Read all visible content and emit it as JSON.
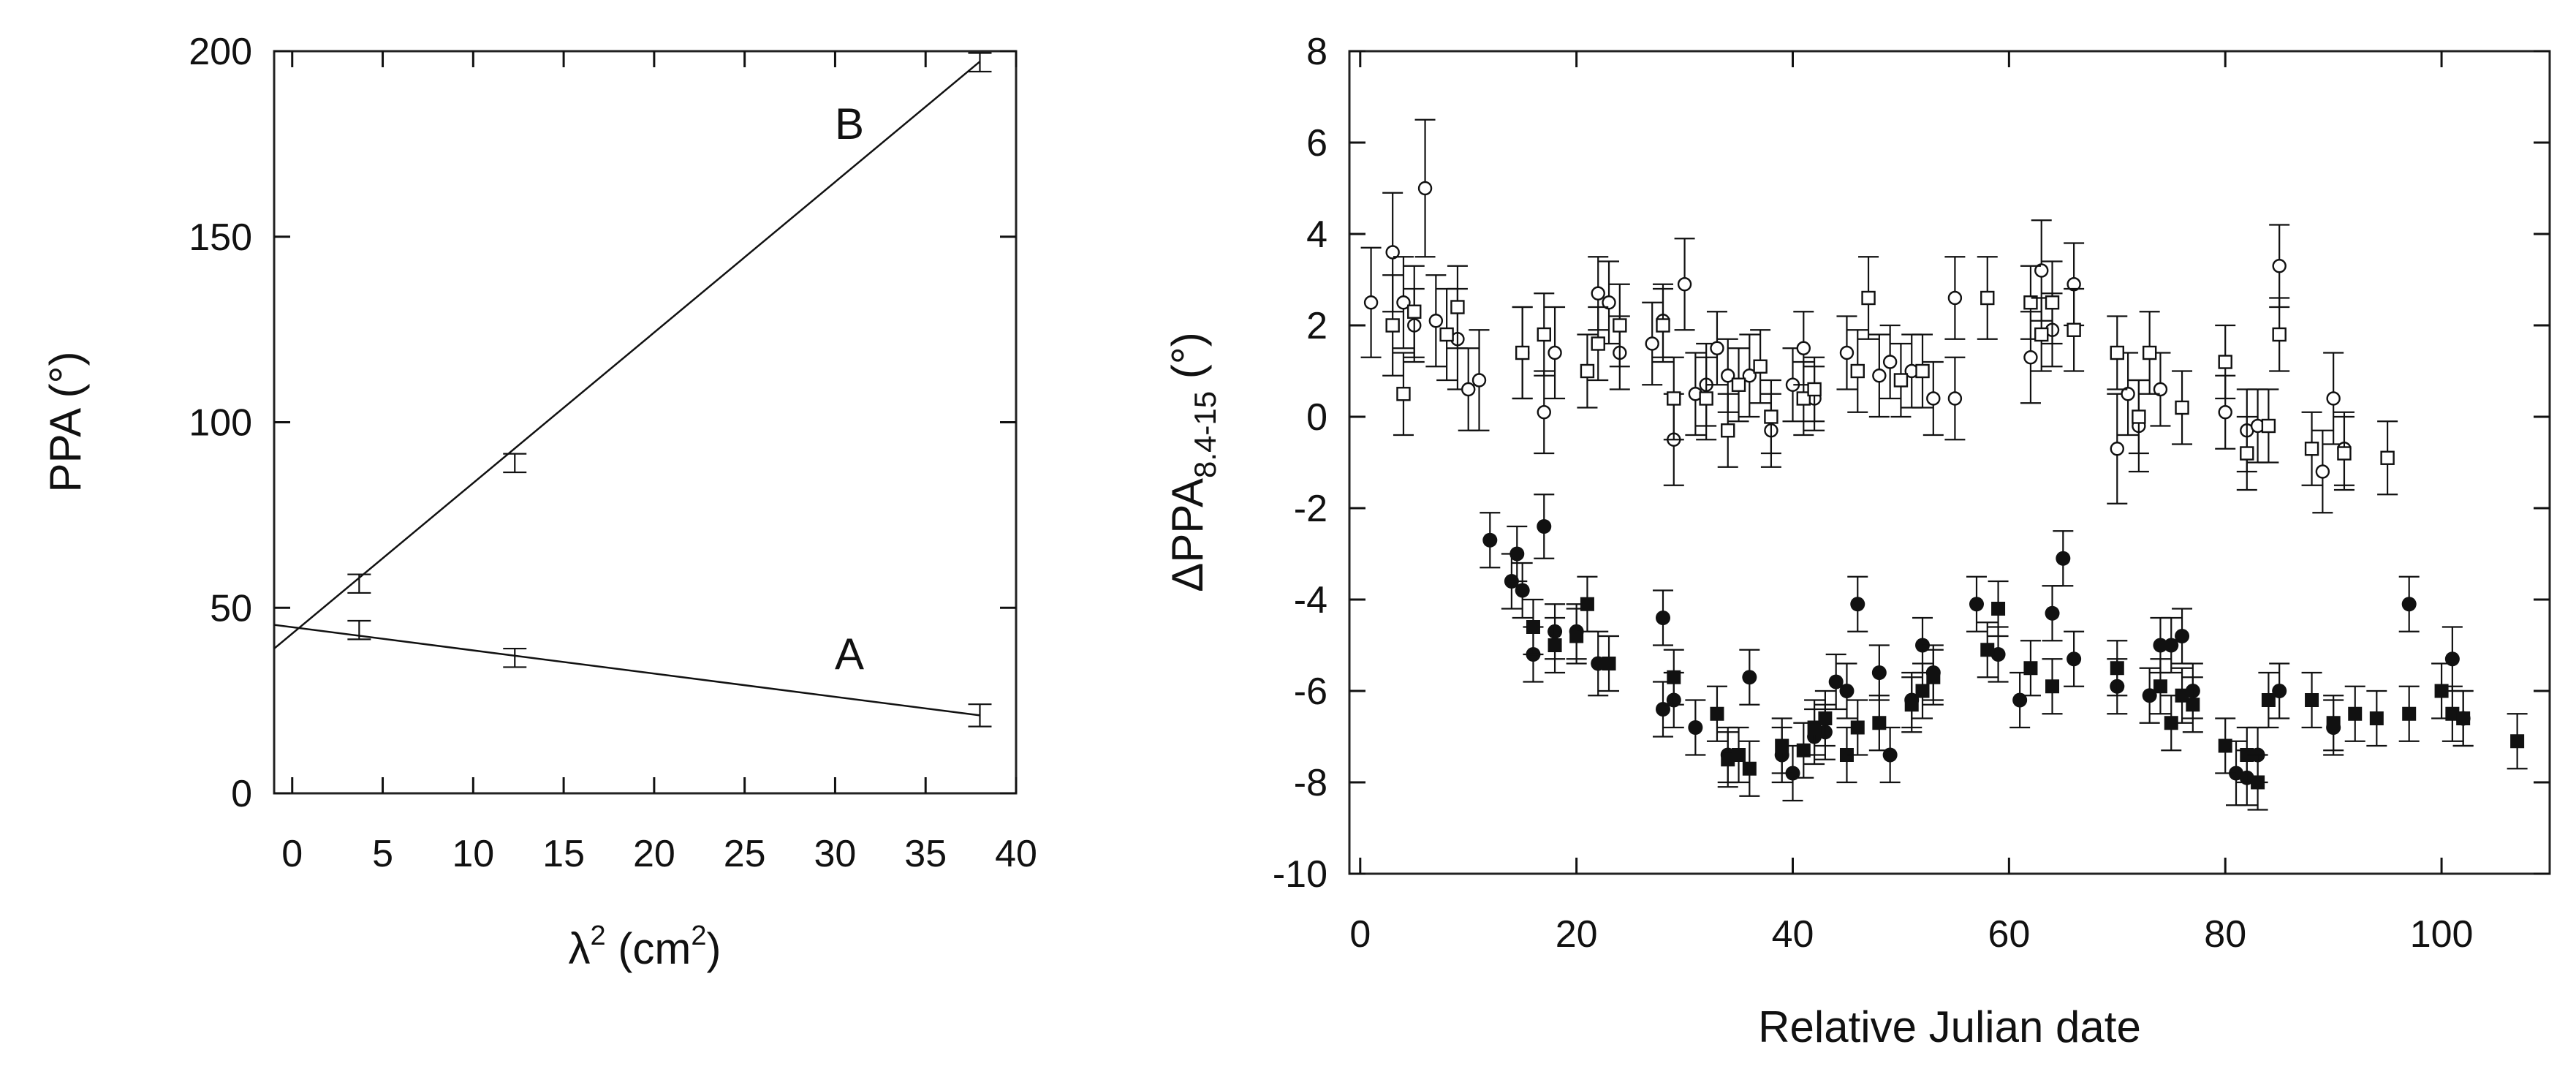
{
  "chart_data": [
    {
      "type": "scatter",
      "xlabel": {
        "text": "λ",
        "sup": "2",
        "suffix": " (cm",
        "sup2": "2",
        "end": ")"
      },
      "ylabel": "PPA (°)",
      "xlim": [
        -1,
        40
      ],
      "ylim": [
        0,
        200
      ],
      "xticks": [
        "0",
        "5",
        "10",
        "15",
        "20",
        "25",
        "30",
        "35",
        "40"
      ],
      "yticks": [
        "0",
        "50",
        "100",
        "150",
        "200"
      ],
      "series": [
        {
          "name": "A",
          "label": "A",
          "points": [
            {
              "x": 3.7,
              "y": 44,
              "err": 2.5
            },
            {
              "x": 12.3,
              "y": 36.5,
              "err": 2.5
            },
            {
              "x": 38,
              "y": 21,
              "err": 3
            }
          ],
          "fit": {
            "x0": -1,
            "y0": 45.4,
            "x1": 38,
            "y1": 21
          }
        },
        {
          "name": "B",
          "label": "B",
          "points": [
            {
              "x": 3.7,
              "y": 56.5,
              "err": 2.5
            },
            {
              "x": 12.3,
              "y": 89,
              "err": 2.5
            },
            {
              "x": 38,
              "y": 197,
              "err": 2.5
            }
          ],
          "fit": {
            "x0": -1,
            "y0": 39,
            "x1": 38,
            "y1": 197.2
          }
        }
      ]
    },
    {
      "type": "scatter",
      "xlabel": "Relative Julian date",
      "ylabel": {
        "text": "ΔPPA",
        "sub": "8.4-15",
        "suffix": "  (°)"
      },
      "xlim": [
        -1,
        110
      ],
      "ylim": [
        -10,
        8
      ],
      "xticks": [
        "0",
        "20",
        "40",
        "60",
        "80",
        "100"
      ],
      "yticks": [
        "-10",
        "-8",
        "-6",
        "-4",
        "-2",
        "0",
        "2",
        "4",
        "6",
        "8"
      ],
      "series": [
        {
          "name": "open circles",
          "marker": "open-circle",
          "points": [
            [
              1,
              2.5,
              1.2
            ],
            [
              3,
              3.6,
              1.3
            ],
            [
              4,
              2.5,
              1.0
            ],
            [
              5,
              2.0,
              0.8
            ],
            [
              6,
              5.0,
              1.5
            ],
            [
              7,
              2.1,
              1.0
            ],
            [
              9,
              1.7,
              1.1
            ],
            [
              10,
              0.6,
              0.9
            ],
            [
              11,
              0.8,
              1.1
            ],
            [
              15,
              1.4,
              1.0
            ],
            [
              17,
              0.1,
              0.9
            ],
            [
              18,
              1.4,
              1.0
            ],
            [
              22,
              2.7,
              0.8
            ],
            [
              23,
              2.5,
              0.9
            ],
            [
              24,
              1.4,
              0.8
            ],
            [
              27,
              1.6,
              0.9
            ],
            [
              28,
              2.1,
              0.8
            ],
            [
              29,
              -0.5,
              1.0
            ],
            [
              30,
              2.9,
              1.0
            ],
            [
              31,
              0.5,
              0.9
            ],
            [
              32,
              0.7,
              0.9
            ],
            [
              33,
              1.5,
              0.8
            ],
            [
              34,
              0.9,
              0.8
            ],
            [
              36,
              0.9,
              0.9
            ],
            [
              38,
              -0.3,
              0.8
            ],
            [
              40,
              0.7,
              0.8
            ],
            [
              41,
              1.5,
              0.8
            ],
            [
              42,
              0.4,
              0.7
            ],
            [
              45,
              1.4,
              0.8
            ],
            [
              48,
              0.9,
              0.9
            ],
            [
              49,
              1.2,
              0.8
            ],
            [
              51,
              1.0,
              0.8
            ],
            [
              53,
              0.4,
              0.8
            ],
            [
              55,
              0.4,
              0.9
            ],
            [
              55,
              2.6,
              0.9
            ],
            [
              62,
              1.3,
              1.0
            ],
            [
              63,
              3.2,
              1.1
            ],
            [
              64,
              1.9,
              0.8
            ],
            [
              66,
              2.9,
              0.9
            ],
            [
              70,
              -0.7,
              1.2
            ],
            [
              71,
              0.5,
              0.9
            ],
            [
              72,
              -0.2,
              1.0
            ],
            [
              74,
              0.6,
              0.8
            ],
            [
              80,
              0.1,
              0.8
            ],
            [
              82,
              -0.3,
              0.9
            ],
            [
              83,
              -0.2,
              0.8
            ],
            [
              85,
              3.3,
              0.9
            ],
            [
              89,
              -1.2,
              0.9
            ],
            [
              90,
              0.4,
              1.0
            ],
            [
              91,
              -0.7,
              0.8
            ]
          ]
        },
        {
          "name": "open squares",
          "marker": "open-square",
          "points": [
            [
              3,
              2.0,
              1.1
            ],
            [
              4,
              0.5,
              0.9
            ],
            [
              5,
              2.3,
              1.0
            ],
            [
              8,
              1.8,
              1.0
            ],
            [
              9,
              2.4,
              0.9
            ],
            [
              15,
              1.4,
              1.0
            ],
            [
              17,
              1.8,
              0.9
            ],
            [
              21,
              1.0,
              0.8
            ],
            [
              22,
              1.6,
              0.8
            ],
            [
              24,
              2.0,
              0.9
            ],
            [
              28,
              2.0,
              0.8
            ],
            [
              29,
              0.4,
              0.9
            ],
            [
              32,
              0.4,
              0.9
            ],
            [
              34,
              -0.3,
              0.8
            ],
            [
              35,
              0.7,
              0.8
            ],
            [
              37,
              1.1,
              0.8
            ],
            [
              38,
              0.0,
              0.8
            ],
            [
              41,
              0.4,
              0.8
            ],
            [
              42,
              0.6,
              0.7
            ],
            [
              46,
              1.0,
              0.9
            ],
            [
              47,
              2.6,
              0.9
            ],
            [
              50,
              0.8,
              0.8
            ],
            [
              52,
              1.0,
              0.8
            ],
            [
              58,
              2.6,
              0.9
            ],
            [
              62,
              2.5,
              0.8
            ],
            [
              63,
              1.8,
              0.8
            ],
            [
              64,
              2.5,
              0.9
            ],
            [
              66,
              1.9,
              0.9
            ],
            [
              70,
              1.4,
              0.8
            ],
            [
              72,
              0.0,
              0.8
            ],
            [
              73,
              1.4,
              0.9
            ],
            [
              76,
              0.2,
              0.8
            ],
            [
              80,
              1.2,
              0.8
            ],
            [
              82,
              -0.8,
              0.8
            ],
            [
              84,
              -0.2,
              0.8
            ],
            [
              85,
              1.8,
              0.8
            ],
            [
              88,
              -0.7,
              0.8
            ],
            [
              91,
              -0.8,
              0.8
            ],
            [
              95,
              -0.9,
              0.8
            ]
          ]
        },
        {
          "name": "filled circles",
          "marker": "filled-circle",
          "points": [
            [
              12,
              -2.7,
              0.6
            ],
            [
              14,
              -3.6,
              0.6
            ],
            [
              14.5,
              -3.0,
              0.6
            ],
            [
              15,
              -3.8,
              0.6
            ],
            [
              16,
              -5.2,
              0.6
            ],
            [
              17,
              -2.4,
              0.7
            ],
            [
              18,
              -4.7,
              0.6
            ],
            [
              20,
              -4.7,
              0.6
            ],
            [
              22,
              -5.4,
              0.7
            ],
            [
              28,
              -4.4,
              0.6
            ],
            [
              28,
              -6.4,
              0.6
            ],
            [
              29,
              -6.2,
              0.6
            ],
            [
              31,
              -6.8,
              0.6
            ],
            [
              34,
              -7.4,
              0.6
            ],
            [
              36,
              -5.7,
              0.6
            ],
            [
              39,
              -7.4,
              0.6
            ],
            [
              40,
              -7.8,
              0.6
            ],
            [
              42,
              -7.0,
              0.6
            ],
            [
              43,
              -6.9,
              0.6
            ],
            [
              44,
              -5.8,
              0.6
            ],
            [
              45,
              -6.0,
              0.6
            ],
            [
              46,
              -4.1,
              0.6
            ],
            [
              48,
              -5.6,
              0.6
            ],
            [
              49,
              -7.4,
              0.6
            ],
            [
              51,
              -6.2,
              0.6
            ],
            [
              52,
              -5.0,
              0.6
            ],
            [
              53,
              -5.6,
              0.6
            ],
            [
              57,
              -4.1,
              0.6
            ],
            [
              59,
              -5.2,
              0.6
            ],
            [
              61,
              -6.2,
              0.6
            ],
            [
              64,
              -4.3,
              0.6
            ],
            [
              65,
              -3.1,
              0.6
            ],
            [
              66,
              -5.3,
              0.6
            ],
            [
              70,
              -5.9,
              0.6
            ],
            [
              73,
              -6.1,
              0.6
            ],
            [
              74,
              -5.0,
              0.6
            ],
            [
              75,
              -5.0,
              0.6
            ],
            [
              76,
              -4.8,
              0.6
            ],
            [
              77,
              -6.0,
              0.6
            ],
            [
              81,
              -7.8,
              0.7
            ],
            [
              82,
              -7.9,
              0.6
            ],
            [
              83,
              -7.4,
              0.6
            ],
            [
              85,
              -6.0,
              0.6
            ],
            [
              90,
              -6.8,
              0.6
            ],
            [
              97,
              -4.1,
              0.6
            ],
            [
              101,
              -5.3,
              0.7
            ],
            [
              102,
              -6.6,
              0.6
            ]
          ]
        },
        {
          "name": "filled squares",
          "marker": "filled-square",
          "points": [
            [
              16,
              -4.6,
              0.6
            ],
            [
              18,
              -5.0,
              0.6
            ],
            [
              20,
              -4.8,
              0.6
            ],
            [
              21,
              -4.1,
              0.6
            ],
            [
              23,
              -5.4,
              0.6
            ],
            [
              29,
              -5.7,
              0.6
            ],
            [
              33,
              -6.5,
              0.6
            ],
            [
              34,
              -7.5,
              0.6
            ],
            [
              35,
              -7.4,
              0.6
            ],
            [
              36,
              -7.7,
              0.6
            ],
            [
              39,
              -7.2,
              0.6
            ],
            [
              41,
              -7.3,
              0.6
            ],
            [
              42,
              -6.8,
              0.6
            ],
            [
              43,
              -6.6,
              0.6
            ],
            [
              45,
              -7.4,
              0.6
            ],
            [
              46,
              -6.8,
              0.6
            ],
            [
              48,
              -6.7,
              0.6
            ],
            [
              51,
              -6.3,
              0.6
            ],
            [
              52,
              -6.0,
              0.6
            ],
            [
              53,
              -5.7,
              0.6
            ],
            [
              58,
              -5.1,
              0.6
            ],
            [
              59,
              -4.2,
              0.6
            ],
            [
              62,
              -5.5,
              0.6
            ],
            [
              64,
              -5.9,
              0.6
            ],
            [
              70,
              -5.5,
              0.6
            ],
            [
              74,
              -5.9,
              0.6
            ],
            [
              75,
              -6.7,
              0.6
            ],
            [
              76,
              -6.1,
              0.6
            ],
            [
              77,
              -6.3,
              0.6
            ],
            [
              80,
              -7.2,
              0.6
            ],
            [
              82,
              -7.4,
              0.6
            ],
            [
              83,
              -8.0,
              0.6
            ],
            [
              84,
              -6.2,
              0.6
            ],
            [
              88,
              -6.2,
              0.6
            ],
            [
              90,
              -6.7,
              0.6
            ],
            [
              92,
              -6.5,
              0.6
            ],
            [
              94,
              -6.6,
              0.6
            ],
            [
              97,
              -6.5,
              0.6
            ],
            [
              100,
              -6.0,
              0.6
            ],
            [
              101,
              -6.5,
              0.6
            ],
            [
              102,
              -6.6,
              0.6
            ],
            [
              107,
              -7.1,
              0.6
            ]
          ]
        }
      ]
    }
  ]
}
